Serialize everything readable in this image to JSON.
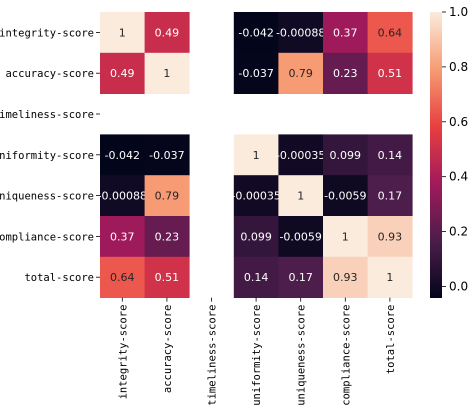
{
  "chart_data": {
    "type": "heatmap",
    "title": "",
    "xlabel": "",
    "ylabel": "",
    "rows": [
      "integrity-score",
      "accuracy-score",
      "timeliness-score",
      "uniformity-score",
      "uniqueness-score",
      "compliance-score",
      "total-score"
    ],
    "columns": [
      "integrity-score",
      "accuracy-score",
      "timeliness-score",
      "uniformity-score",
      "uniqueness-score",
      "compliance-score",
      "total-score"
    ],
    "values": [
      [
        1,
        0.49,
        null,
        -0.042,
        -0.00088,
        0.37,
        0.64
      ],
      [
        0.49,
        1,
        null,
        -0.037,
        0.79,
        0.23,
        0.51
      ],
      [
        null,
        null,
        null,
        null,
        null,
        null,
        null
      ],
      [
        -0.042,
        -0.037,
        null,
        1,
        -0.00035,
        0.099,
        0.14
      ],
      [
        -0.00088,
        0.79,
        null,
        -0.00035,
        1,
        -0.0059,
        0.17
      ],
      [
        0.37,
        0.23,
        null,
        0.099,
        -0.0059,
        1,
        0.93
      ],
      [
        0.64,
        0.51,
        null,
        0.14,
        0.17,
        0.93,
        1
      ]
    ],
    "annotations": [
      [
        "1",
        "0.49",
        "",
        "-0.042",
        "-0.00088",
        "0.37",
        "0.64"
      ],
      [
        "0.49",
        "1",
        "",
        "-0.037",
        "0.79",
        "0.23",
        "0.51"
      ],
      [
        "",
        "",
        "",
        "",
        "",
        "",
        ""
      ],
      [
        "-0.042",
        "-0.037",
        "",
        "1",
        "-0.00035",
        "0.099",
        "0.14"
      ],
      [
        "-0.00088",
        "0.79",
        "",
        "-0.00035",
        "1",
        "-0.0059",
        "0.17"
      ],
      [
        "0.37",
        "0.23",
        "",
        "0.099",
        "-0.0059",
        "1",
        "0.93"
      ],
      [
        "0.64",
        "0.51",
        "",
        "0.14",
        "0.17",
        "0.93",
        "1"
      ]
    ],
    "colorbar": {
      "range": [
        -0.042,
        1
      ],
      "ticks": [
        0.0,
        0.2,
        0.4,
        0.6,
        0.8,
        1.0
      ],
      "tick_labels": [
        "0.0",
        "0.2",
        "0.4",
        "0.6",
        "0.8",
        "1.0"
      ],
      "colormap": "rocket",
      "color_stops": [
        "#03051a",
        "#4c1d4b",
        "#a11a5b",
        "#e83f3f",
        "#f69c73",
        "#faebdd"
      ]
    },
    "grid": false,
    "legend": "colorbar-right"
  }
}
